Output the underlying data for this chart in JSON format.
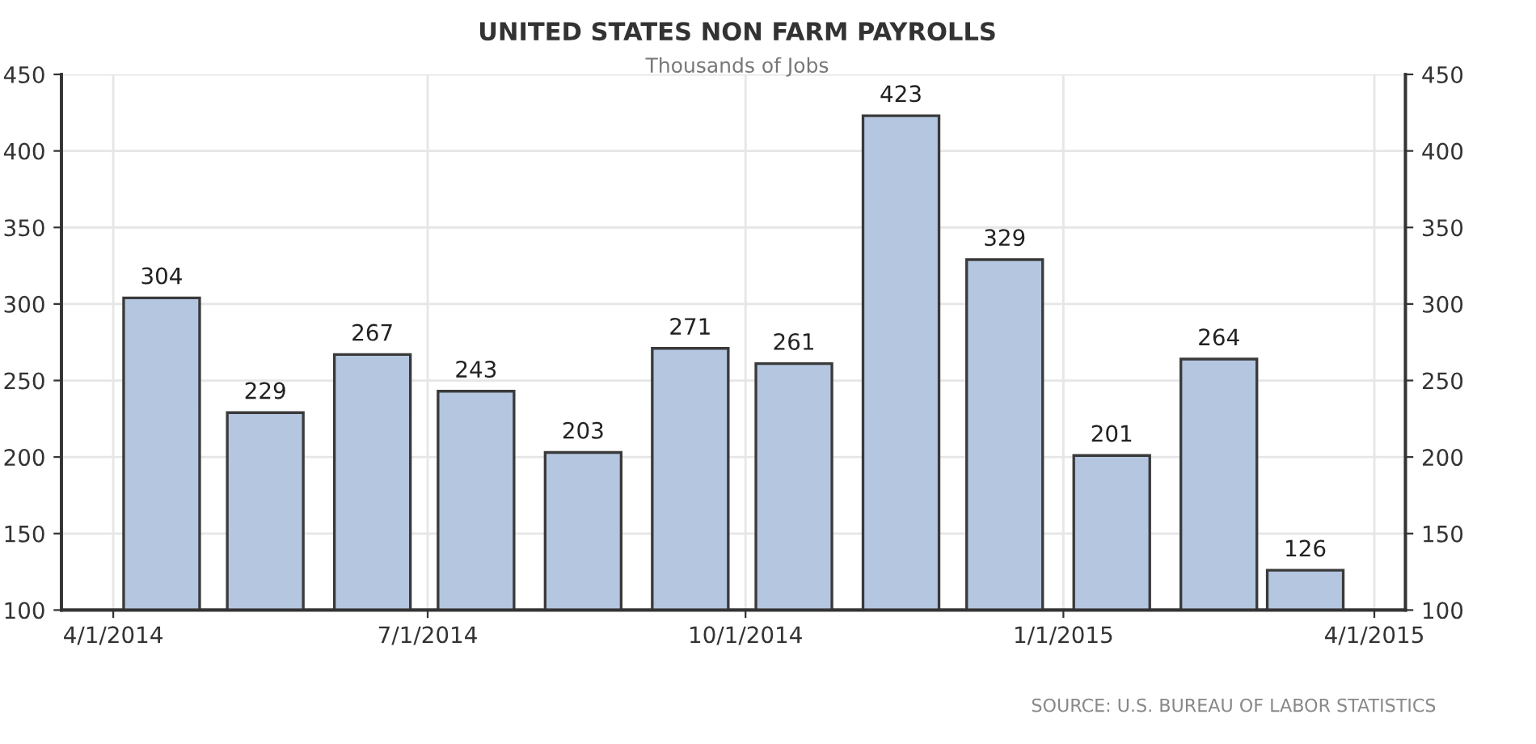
{
  "chart_data": {
    "type": "bar",
    "title": "UNITED STATES NON FARM PAYROLLS",
    "subtitle": "Thousands of Jobs",
    "x": [
      "2014-04-15",
      "2014-05-15",
      "2014-06-15",
      "2014-07-15",
      "2014-08-15",
      "2014-09-15",
      "2014-10-15",
      "2014-11-15",
      "2014-12-15",
      "2015-01-15",
      "2015-02-15",
      "2015-03-12"
    ],
    "values": [
      304,
      229,
      267,
      243,
      203,
      271,
      261,
      423,
      329,
      201,
      264,
      126
    ],
    "color": "#b4c6e0",
    "xlim": [
      "2014-03-17",
      "2015-04-10"
    ],
    "xticks": [
      {
        "value": "2014-04-01",
        "label": "4/1/2014"
      },
      {
        "value": "2014-07-01",
        "label": "7/1/2014"
      },
      {
        "value": "2014-10-01",
        "label": "10/1/2014"
      },
      {
        "value": "2015-01-01",
        "label": "1/1/2015"
      },
      {
        "value": "2015-04-01",
        "label": "4/1/2015"
      }
    ],
    "ylim": [
      100,
      450
    ],
    "yticks": [
      100,
      150,
      200,
      250,
      300,
      350,
      400,
      450
    ],
    "y2lim": [
      100,
      450
    ],
    "y2ticks": [
      100,
      150,
      200,
      250,
      300,
      350,
      400,
      450
    ],
    "grid": true,
    "data_labels": true,
    "annotations": [
      "SOURCE: U.S. BUREAU OF LABOR STATISTICS"
    ]
  }
}
